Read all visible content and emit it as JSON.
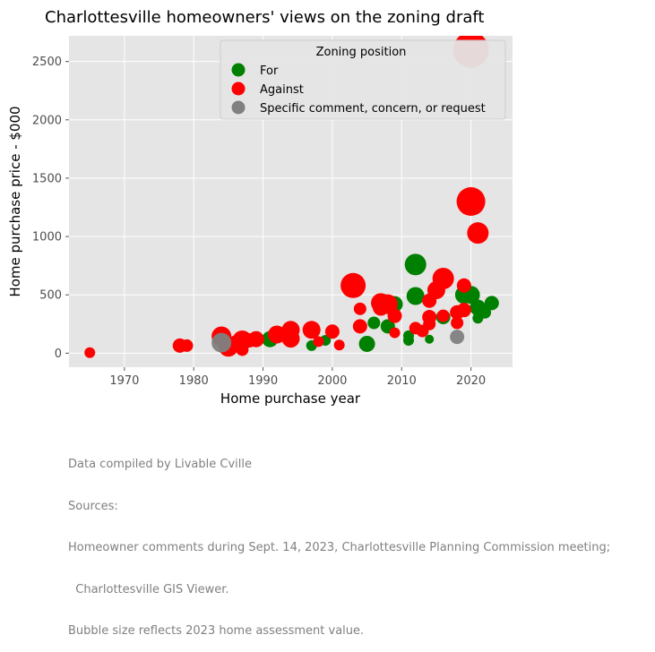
{
  "chart_data": {
    "type": "scatter",
    "title": "Charlottesville homeowners' views on the zoning draft",
    "xlabel": "Home purchase year",
    "ylabel": "Home purchase price - $000",
    "xlim": [
      1962,
      2026
    ],
    "ylim": [
      -120,
      2720
    ],
    "xticks": [
      1970,
      1980,
      1990,
      2000,
      2010,
      2020
    ],
    "yticks": [
      0,
      500,
      1000,
      1500,
      2000,
      2500
    ],
    "grid": true,
    "legend": {
      "title": "Zoning position",
      "placement": "top-right",
      "entries": [
        {
          "label": "For",
          "color": "#008000"
        },
        {
          "label": "Against",
          "color": "#ff0000"
        },
        {
          "label": "Specific comment, concern, or request",
          "color": "#808080"
        }
      ]
    },
    "size_note": "Bubble size reflects 2023 home assessment value.",
    "series": [
      {
        "name": "For",
        "color": "#008000",
        "points": [
          {
            "x": 1991,
            "y": 120,
            "s": 9
          },
          {
            "x": 1997,
            "y": 65,
            "s": 6
          },
          {
            "x": 1999,
            "y": 110,
            "s": 6
          },
          {
            "x": 2005,
            "y": 80,
            "s": 9
          },
          {
            "x": 2006,
            "y": 260,
            "s": 7
          },
          {
            "x": 2008,
            "y": 230,
            "s": 8
          },
          {
            "x": 2009,
            "y": 420,
            "s": 9
          },
          {
            "x": 2011,
            "y": 110,
            "s": 6
          },
          {
            "x": 2011,
            "y": 150,
            "s": 6
          },
          {
            "x": 2012,
            "y": 760,
            "s": 12
          },
          {
            "x": 2012,
            "y": 490,
            "s": 10
          },
          {
            "x": 2014,
            "y": 120,
            "s": 5
          },
          {
            "x": 2016,
            "y": 310,
            "s": 8
          },
          {
            "x": 2019,
            "y": 500,
            "s": 10
          },
          {
            "x": 2020,
            "y": 500,
            "s": 10
          },
          {
            "x": 2021,
            "y": 300,
            "s": 6
          },
          {
            "x": 2021,
            "y": 390,
            "s": 9
          },
          {
            "x": 2022,
            "y": 350,
            "s": 7
          },
          {
            "x": 2023,
            "y": 430,
            "s": 8
          }
        ]
      },
      {
        "name": "Against",
        "color": "#ff0000",
        "points": [
          {
            "x": 1965,
            "y": 5,
            "s": 6
          },
          {
            "x": 1978,
            "y": 65,
            "s": 8
          },
          {
            "x": 1979,
            "y": 65,
            "s": 7
          },
          {
            "x": 1984,
            "y": 145,
            "s": 11
          },
          {
            "x": 1985,
            "y": 55,
            "s": 11
          },
          {
            "x": 1986,
            "y": 90,
            "s": 8
          },
          {
            "x": 1987,
            "y": 110,
            "s": 11
          },
          {
            "x": 1987,
            "y": 30,
            "s": 7
          },
          {
            "x": 1988,
            "y": 110,
            "s": 8
          },
          {
            "x": 1989,
            "y": 120,
            "s": 9
          },
          {
            "x": 1992,
            "y": 160,
            "s": 10
          },
          {
            "x": 1994,
            "y": 200,
            "s": 10
          },
          {
            "x": 1994,
            "y": 125,
            "s": 10
          },
          {
            "x": 1997,
            "y": 200,
            "s": 10
          },
          {
            "x": 1998,
            "y": 100,
            "s": 6
          },
          {
            "x": 2000,
            "y": 185,
            "s": 8
          },
          {
            "x": 2001,
            "y": 70,
            "s": 6
          },
          {
            "x": 2003,
            "y": 580,
            "s": 14
          },
          {
            "x": 2004,
            "y": 380,
            "s": 7
          },
          {
            "x": 2004,
            "y": 230,
            "s": 8
          },
          {
            "x": 2007,
            "y": 430,
            "s": 11
          },
          {
            "x": 2007,
            "y": 390,
            "s": 9
          },
          {
            "x": 2008,
            "y": 420,
            "s": 11
          },
          {
            "x": 2009,
            "y": 320,
            "s": 8
          },
          {
            "x": 2009,
            "y": 175,
            "s": 6
          },
          {
            "x": 2012,
            "y": 215,
            "s": 7
          },
          {
            "x": 2013,
            "y": 190,
            "s": 7
          },
          {
            "x": 2014,
            "y": 310,
            "s": 8
          },
          {
            "x": 2014,
            "y": 250,
            "s": 7
          },
          {
            "x": 2014,
            "y": 450,
            "s": 8
          },
          {
            "x": 2015,
            "y": 540,
            "s": 10
          },
          {
            "x": 2016,
            "y": 640,
            "s": 12
          },
          {
            "x": 2016,
            "y": 320,
            "s": 7
          },
          {
            "x": 2018,
            "y": 350,
            "s": 8
          },
          {
            "x": 2018,
            "y": 260,
            "s": 7
          },
          {
            "x": 2019,
            "y": 580,
            "s": 8
          },
          {
            "x": 2019,
            "y": 370,
            "s": 8
          },
          {
            "x": 2020,
            "y": 1300,
            "s": 16
          },
          {
            "x": 2020,
            "y": 2600,
            "s": 20
          },
          {
            "x": 2021,
            "y": 1030,
            "s": 12
          }
        ]
      },
      {
        "name": "Specific comment, concern, or request",
        "color": "#808080",
        "points": [
          {
            "x": 1984,
            "y": 90,
            "s": 11
          },
          {
            "x": 2018,
            "y": 140,
            "s": 8
          }
        ]
      }
    ]
  },
  "footnote": {
    "lines": [
      "Data compiled by Livable Cville",
      "Sources:",
      "Homeowner comments during Sept. 14, 2023, Charlottesville Planning Commission meeting;",
      "  Charlottesville GIS Viewer.",
      "Bubble size reflects 2023 home assessment value."
    ]
  }
}
